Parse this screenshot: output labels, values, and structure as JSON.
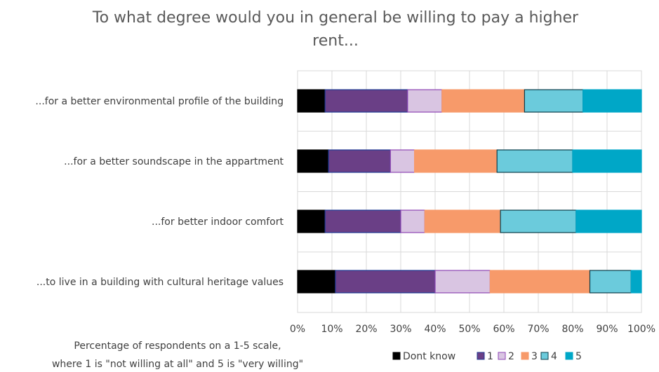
{
  "chart_data": {
    "type": "bar",
    "orientation": "horizontal",
    "stacked": true,
    "title_lines": [
      "To what degree would you in general be willing to pay a higher",
      "rent..."
    ],
    "categories": [
      "...for a better environmental profile of the building",
      "...for a better soundscape in the appartment",
      "...for better indoor comfort",
      "...to live in a building with cultural heritage values"
    ],
    "series": [
      {
        "name": "Dont know",
        "color": "#000000",
        "stroke": "#000000",
        "values": [
          8,
          9,
          8,
          11
        ]
      },
      {
        "name": "1",
        "color": "#6a3f86",
        "stroke": "#1f3a93",
        "values": [
          24,
          18,
          22,
          29
        ]
      },
      {
        "name": "2",
        "color": "#d9c5e2",
        "stroke": "#8e45b5",
        "values": [
          10,
          7,
          7,
          16
        ]
      },
      {
        "name": "3",
        "color": "#f79a6a",
        "stroke": "#f79a6a",
        "values": [
          24,
          24,
          22,
          29
        ]
      },
      {
        "name": "4",
        "color": "#6bcbdc",
        "stroke": "#0b3d4a",
        "values": [
          17,
          22,
          22,
          12
        ]
      },
      {
        "name": "5",
        "color": "#00a7c7",
        "stroke": "#00a7c7",
        "values": [
          17,
          20,
          19,
          3
        ]
      }
    ],
    "xlim": [
      0,
      100
    ],
    "x_ticks": [
      "0%",
      "10%",
      "20%",
      "30%",
      "40%",
      "50%",
      "60%",
      "70%",
      "80%",
      "90%",
      "100%"
    ],
    "grid": true,
    "legend_position": "bottom-right",
    "note_lines": [
      "Percentage of respondents on a 1-5 scale,",
      "where 1 is \"not willing at all\" and 5 is \"very willing\""
    ]
  }
}
